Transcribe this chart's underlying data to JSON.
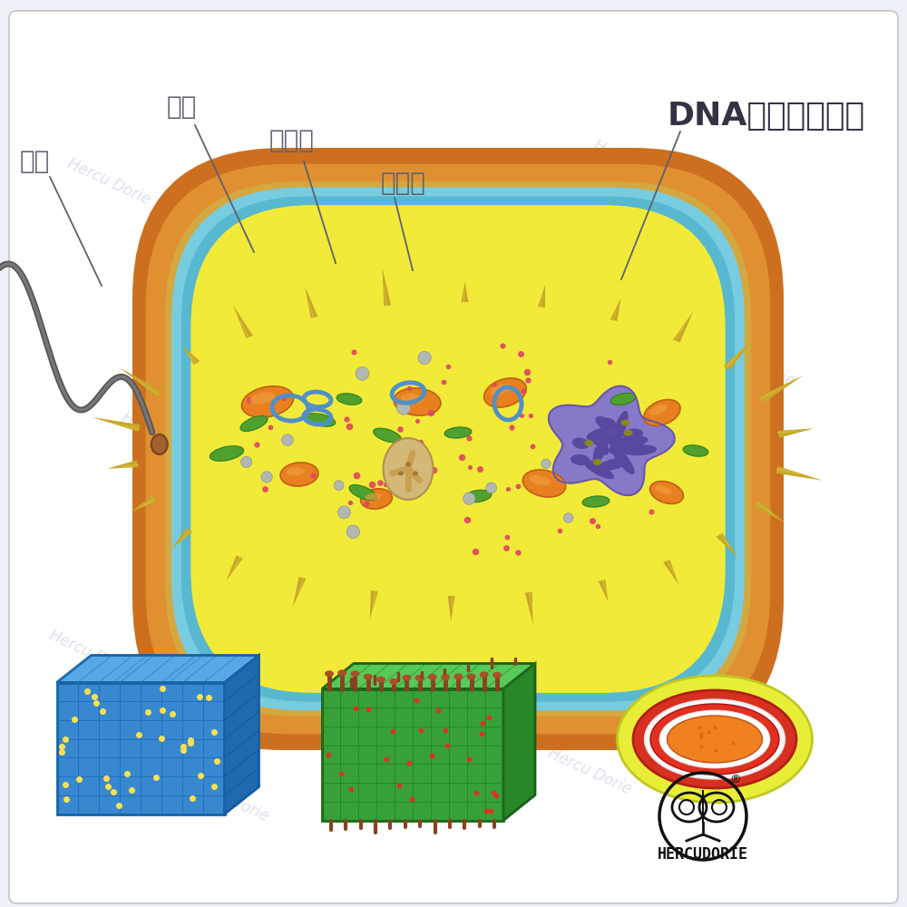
{
  "bg_color": "#eef2f8",
  "panel_color": "#ffffff",
  "panel_border": "#cccccc",
  "watermark_text": "Hercu Dorie",
  "watermark_color": "#c0c8d8",
  "labels": {
    "flagella": "鞭毛",
    "capsule": "茸膜",
    "cell_wall": "细胞壁",
    "cell_membrane": "细胞膜",
    "dna": "DNA（遗传物质）"
  },
  "label_color": "#606070",
  "label_fontsize": 20,
  "dna_label_fontsize": 26,
  "brand_text": "HERCUDORIE",
  "brand_color": "#111111"
}
